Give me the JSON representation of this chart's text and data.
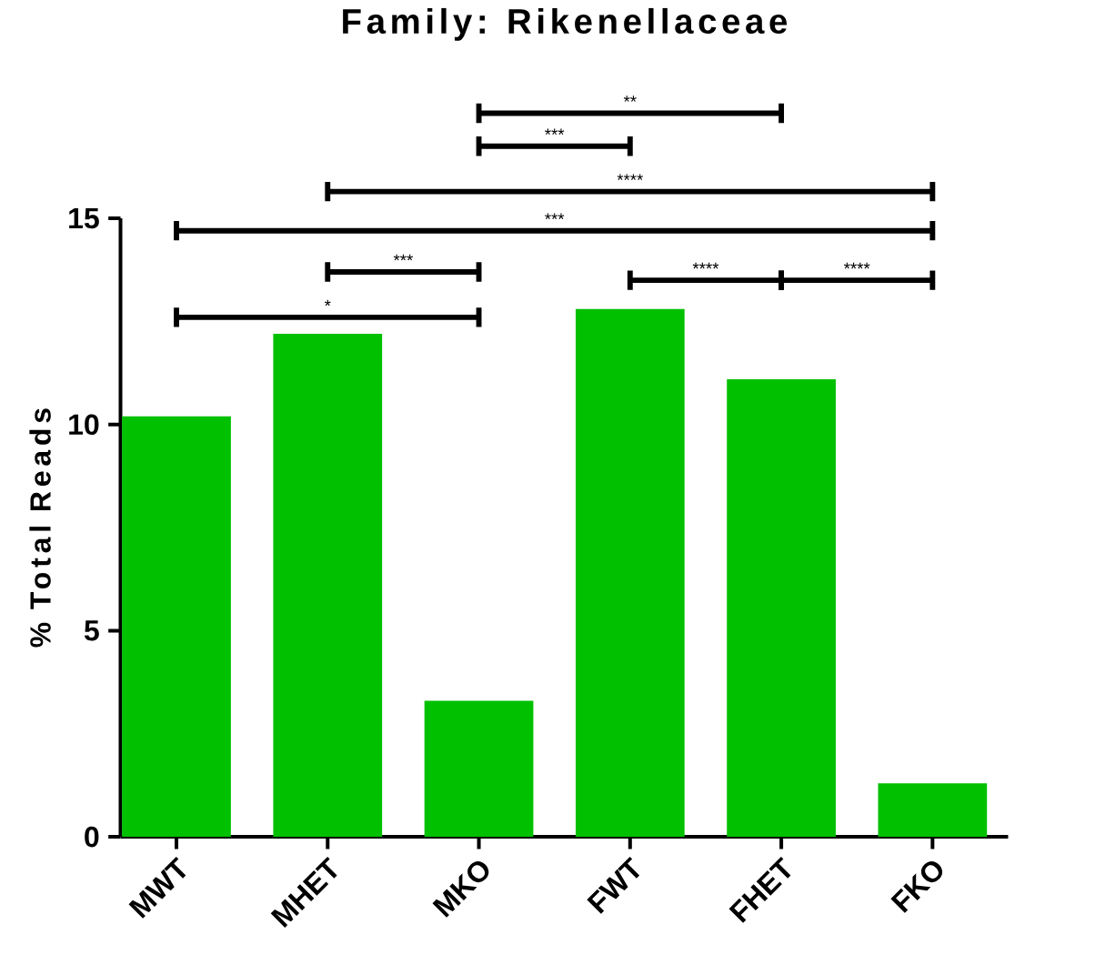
{
  "chart_data": {
    "type": "bar",
    "title": "Family: Rikenellaceae",
    "ylabel": "% Total Reads",
    "categories": [
      "MWT",
      "MHET",
      "MKO",
      "FWT",
      "FHET",
      "FKO"
    ],
    "values": [
      10.2,
      12.2,
      3.3,
      12.8,
      11.1,
      1.3
    ],
    "color": "#00c000",
    "ylim": [
      0,
      15
    ],
    "yticks": [
      0,
      5,
      10,
      15
    ],
    "annotations": [
      "*",
      "***",
      "***",
      "****",
      "***",
      "**",
      "****",
      "****"
    ]
  }
}
